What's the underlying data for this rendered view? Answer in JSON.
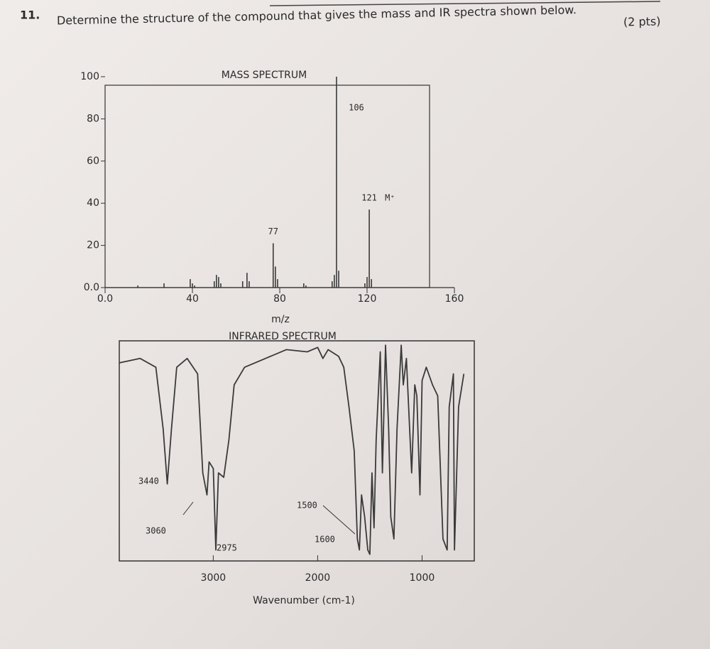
{
  "question": {
    "number": "11.",
    "text": "Determine the structure of the compound that gives the mass and IR spectra shown below.",
    "points": "(2 pts)"
  },
  "chart_data": [
    {
      "type": "bar",
      "title": "MASS SPECTRUM",
      "x_label": "m/z",
      "x": [
        15,
        27,
        39,
        40,
        41,
        50,
        51,
        52,
        53,
        63,
        65,
        66,
        77,
        78,
        79,
        91,
        92,
        104,
        105,
        106,
        107,
        119,
        120,
        121,
        122
      ],
      "values": [
        1,
        2,
        4,
        2,
        1,
        3,
        6,
        5,
        2,
        3,
        7,
        3,
        21,
        10,
        4,
        2,
        1,
        3,
        6,
        100,
        8,
        2,
        5,
        37,
        4
      ],
      "color": "#3a3a3a",
      "xlim": [
        0,
        160
      ],
      "xticks": [
        {
          "value": 0,
          "label": "0.0"
        },
        40,
        80,
        120,
        160
      ],
      "ylim": [
        0,
        100
      ],
      "yticks": [
        {
          "value": 0,
          "label": "0.0"
        },
        20,
        40,
        60,
        80,
        100
      ],
      "annotations": [
        {
          "text": "M⁺",
          "x": 121
        }
      ]
    },
    {
      "type": "line",
      "title": "INFRARED SPECTRUM",
      "x_label": "Wavenumber (cm-1)",
      "x": [
        3900,
        3700,
        3550,
        3480,
        3440,
        3400,
        3350,
        3250,
        3150,
        3100,
        3060,
        3040,
        3000,
        2975,
        2950,
        2900,
        2850,
        2800,
        2700,
        2500,
        2300,
        2100,
        2000,
        1950,
        1900,
        1800,
        1750,
        1700,
        1650,
        1620,
        1600,
        1580,
        1550,
        1520,
        1500,
        1480,
        1460,
        1440,
        1400,
        1380,
        1350,
        1320,
        1300,
        1270,
        1240,
        1200,
        1180,
        1150,
        1100,
        1070,
        1050,
        1020,
        1000,
        960,
        900,
        850,
        800,
        760,
        740,
        700,
        690,
        650,
        600
      ],
      "values": [
        90,
        92,
        88,
        60,
        35,
        60,
        88,
        92,
        85,
        40,
        30,
        45,
        42,
        5,
        40,
        38,
        55,
        80,
        88,
        92,
        96,
        95,
        97,
        92,
        96,
        93,
        88,
        70,
        50,
        10,
        5,
        30,
        20,
        5,
        3,
        40,
        15,
        55,
        95,
        40,
        98,
        60,
        20,
        10,
        60,
        98,
        80,
        92,
        40,
        80,
        75,
        30,
        82,
        88,
        80,
        75,
        10,
        5,
        70,
        85,
        5,
        70,
        85
      ],
      "color": "#3a3a3a",
      "xlim": [
        3900,
        500
      ],
      "xticks": [
        3000,
        2000,
        1000
      ],
      "ylim": [
        0,
        100
      ],
      "annotations": [
        3440,
        3060,
        2975,
        1500,
        1600
      ]
    }
  ]
}
